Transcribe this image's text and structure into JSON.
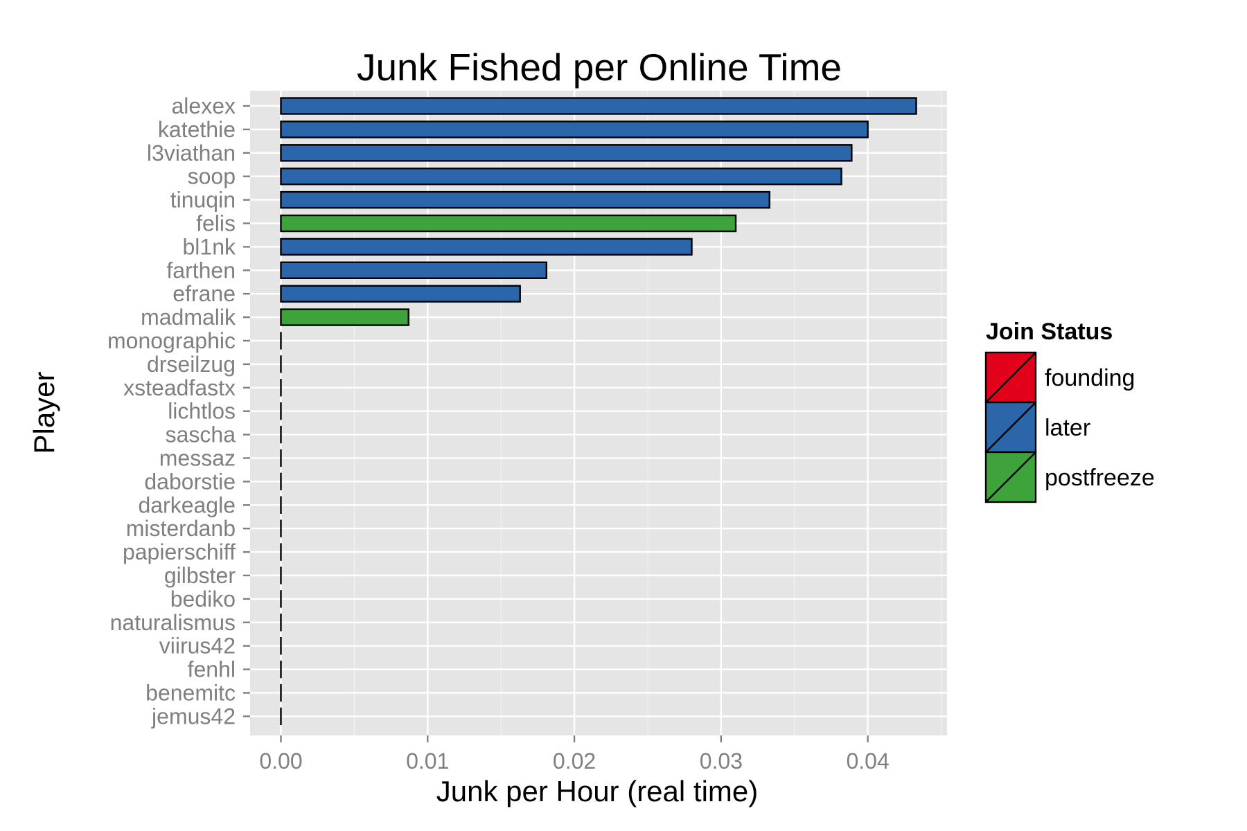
{
  "chart_data": {
    "type": "bar",
    "orientation": "horizontal",
    "title": "Junk Fished per Online Time",
    "xlabel": "Junk per Hour (real time)",
    "ylabel": "Player",
    "xlim": [
      -0.0021,
      0.0454
    ],
    "xticks": [
      0.0,
      0.01,
      0.02,
      0.03,
      0.04
    ],
    "xtick_labels": [
      "0.00",
      "0.01",
      "0.02",
      "0.03",
      "0.04"
    ],
    "grid": true,
    "legend_position": "right",
    "legend": {
      "title": "Join Status",
      "entries": [
        {
          "name": "founding",
          "color": "#e3001b"
        },
        {
          "name": "later",
          "color": "#2b65aa"
        },
        {
          "name": "postfreeze",
          "color": "#3ea33b"
        }
      ]
    },
    "categories": [
      "alexex",
      "katethie",
      "l3viathan",
      "soop",
      "tinuqin",
      "felis",
      "bl1nk",
      "farthen",
      "efrane",
      "madmalik",
      "monographic",
      "drseilzug",
      "xsteadfastx",
      "lichtlos",
      "sascha",
      "messaz",
      "daborstie",
      "darkeagle",
      "misterdanb",
      "papierschiff",
      "gilbster",
      "bediko",
      "naturalismus",
      "viirus42",
      "fenhl",
      "benemitc",
      "jemus42"
    ],
    "values": [
      0.0433,
      0.04,
      0.0389,
      0.0382,
      0.0333,
      0.031,
      0.028,
      0.0181,
      0.0163,
      0.0087,
      0,
      0,
      0,
      0,
      0,
      0,
      0,
      0,
      0,
      0,
      0,
      0,
      0,
      0,
      0,
      0,
      0
    ],
    "groups": [
      "later",
      "later",
      "later",
      "later",
      "later",
      "postfreeze",
      "later",
      "later",
      "later",
      "postfreeze",
      "later",
      "later",
      "later",
      "later",
      "later",
      "later",
      "later",
      "later",
      "later",
      "later",
      "later",
      "later",
      "later",
      "later",
      "later",
      "later",
      "later"
    ]
  }
}
